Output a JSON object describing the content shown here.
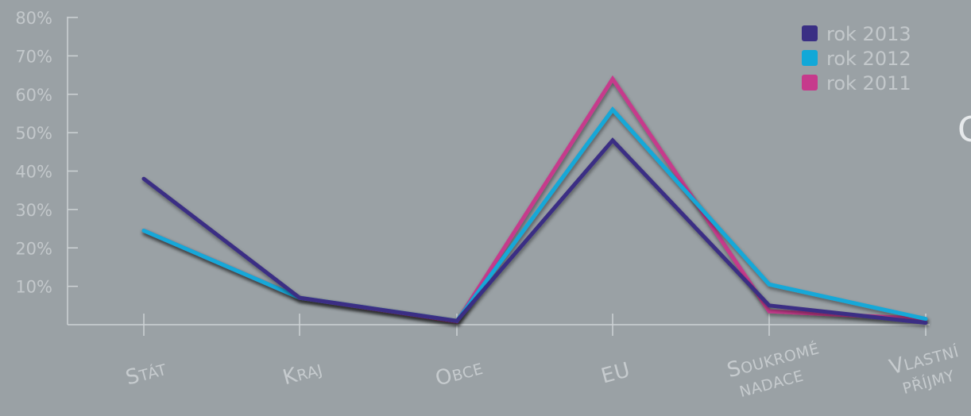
{
  "chart_data": {
    "type": "line",
    "categories": [
      [
        "S",
        "TÁT"
      ],
      [
        "K",
        "RAJ"
      ],
      [
        "O",
        "BCE"
      ],
      [
        "EU",
        ""
      ],
      [
        "S",
        "OUKROMÉ",
        "NADACE"
      ],
      [
        "V",
        "LASTNÍ",
        "PŘÍJMY"
      ]
    ],
    "yticks": [
      "80%",
      "70%",
      "60%",
      "50%",
      "40%",
      "30%",
      "20%",
      "10%"
    ],
    "ylim": [
      0,
      80
    ],
    "series": [
      {
        "name": "rok 2013",
        "color": "#3a2f84",
        "values": [
          38,
          7,
          1,
          48,
          5,
          0.5
        ]
      },
      {
        "name": "rok 2012",
        "color": "#12a8d8",
        "values": [
          24.5,
          7,
          1,
          56,
          10.5,
          1.5
        ]
      },
      {
        "name": "rok 2011",
        "color": "#c63a8c",
        "values": [
          24.5,
          7,
          0.8,
          64,
          3.5,
          1.5
        ]
      }
    ],
    "legend_position": "top-right",
    "side_text": "C"
  }
}
